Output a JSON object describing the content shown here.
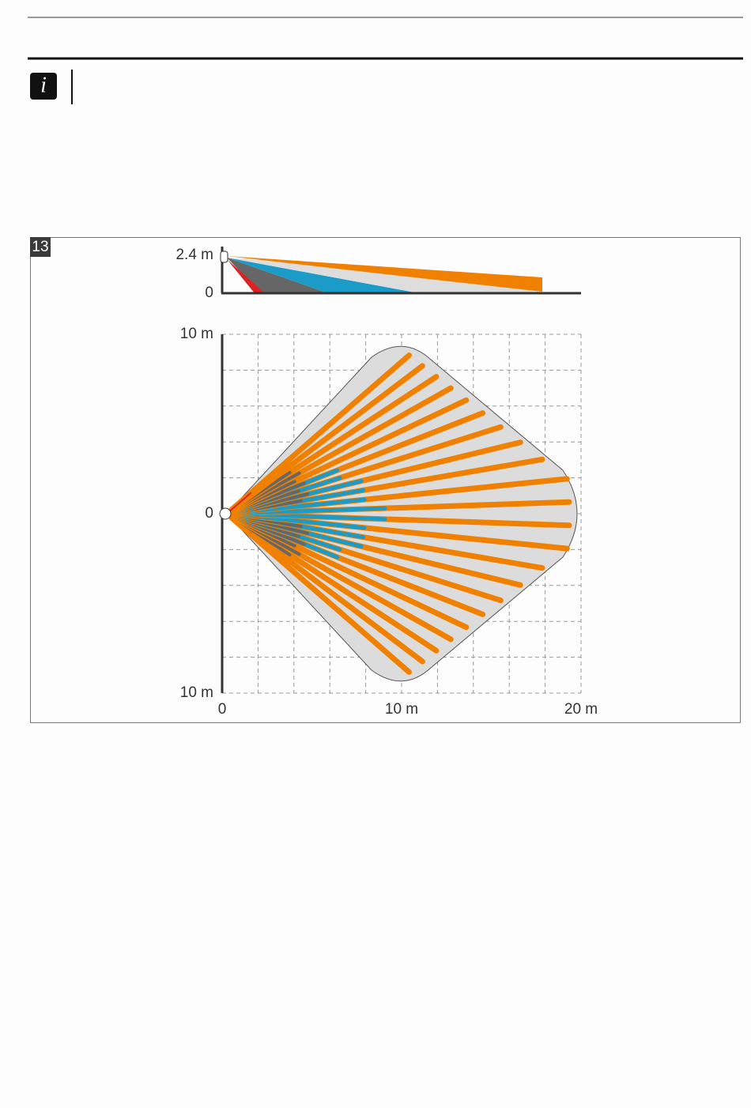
{
  "figure": {
    "number": "13",
    "side_view": {
      "y_labels": [
        "2.4 m",
        "0"
      ]
    },
    "top_view": {
      "y_labels": [
        "10 m",
        "0",
        "10 m"
      ],
      "x_labels": [
        "0",
        "10 m",
        "20 m"
      ]
    }
  }
}
